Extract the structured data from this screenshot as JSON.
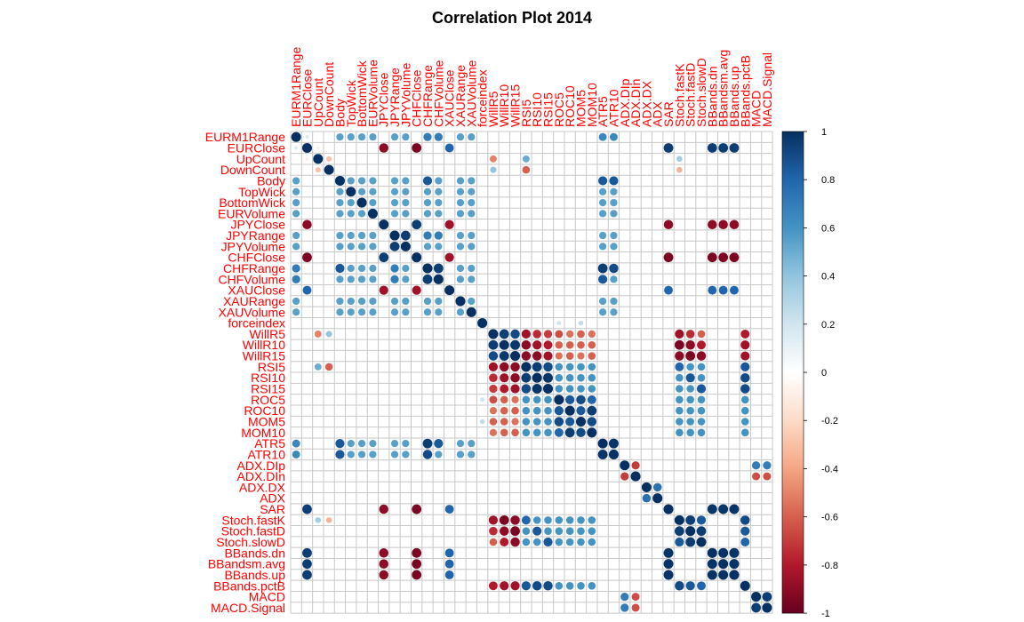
{
  "chart_data": {
    "type": "heatmap",
    "title": "Correlation Plot 2014",
    "method": "circle",
    "labels": [
      "EURM1Range",
      "EURClose",
      "UpCount",
      "DownCount",
      "Body",
      "TopWick",
      "BottomWick",
      "EURVolume",
      "JPYClose",
      "JPYRange",
      "JPYVolume",
      "CHFClose",
      "CHFRange",
      "CHFVolume",
      "XAUClose",
      "XAURange",
      "XAUVolume",
      "forceindex",
      "WillR5",
      "WillR10",
      "WillR15",
      "RSI5",
      "RSI10",
      "RSI15",
      "ROC5",
      "ROC10",
      "MOM5",
      "MOM10",
      "ATR5",
      "ATR10",
      "ADX.DIp",
      "ADX.DIn",
      "ADX.DX",
      "ADX",
      "SAR",
      "Stoch.fastK",
      "Stoch.fastD",
      "Stoch.slowD",
      "BBands.dn",
      "BBandsm.avg",
      "BBands.up",
      "BBands.pctB",
      "MACD",
      "MACD.Signal"
    ],
    "colorbar": {
      "range": [
        -1,
        1
      ],
      "ticks": [
        "1",
        "0.8",
        "0.6",
        "0.4",
        "0.2",
        "0",
        "-0.2",
        "-0.4",
        "-0.6",
        "-0.8",
        "-1"
      ],
      "colors": [
        "#67001f",
        "#b2182b",
        "#d6604d",
        "#f4a582",
        "#fddbc7",
        "#ffffff",
        "#d1e5f0",
        "#92c5de",
        "#4393c3",
        "#2166ac",
        "#053061"
      ]
    },
    "groups": {
      "a": [
        0,
        4,
        5,
        6,
        7,
        9,
        10,
        12,
        13,
        15,
        16,
        28,
        29
      ],
      "b": [
        1,
        8,
        11,
        14,
        34,
        38,
        39,
        40
      ],
      "c": [
        18,
        19,
        20,
        21,
        22,
        23,
        24,
        25,
        26,
        27,
        35,
        36,
        37,
        41
      ],
      "d": [
        30,
        31,
        42,
        43
      ]
    },
    "overrides": [
      {
        "i": 0,
        "j": 12,
        "v": 0.7
      },
      {
        "i": 0,
        "j": 13,
        "v": 0.7
      },
      {
        "i": 0,
        "j": 28,
        "v": 0.65
      },
      {
        "i": 0,
        "j": 29,
        "v": 0.65
      },
      {
        "i": 4,
        "j": 12,
        "v": 0.85
      },
      {
        "i": 4,
        "j": 28,
        "v": 0.85
      },
      {
        "i": 4,
        "j": 29,
        "v": 0.85
      },
      {
        "i": 12,
        "j": 13,
        "v": 0.95
      },
      {
        "i": 12,
        "j": 28,
        "v": 0.95
      },
      {
        "i": 12,
        "j": 29,
        "v": 0.9
      },
      {
        "i": 13,
        "j": 28,
        "v": 0.85
      },
      {
        "i": 28,
        "j": 29,
        "v": 0.98
      },
      {
        "i": 9,
        "j": 10,
        "v": 0.95
      },
      {
        "i": 9,
        "j": 12,
        "v": 0.7
      },
      {
        "i": 9,
        "j": 13,
        "v": 0.7
      },
      {
        "i": 8,
        "j": 11,
        "v": 0.95
      },
      {
        "i": 1,
        "j": 8,
        "v": -0.9
      },
      {
        "i": 1,
        "j": 11,
        "v": -0.95
      },
      {
        "i": 1,
        "j": 14,
        "v": 0.8
      },
      {
        "i": 8,
        "j": 14,
        "v": -0.85
      },
      {
        "i": 11,
        "j": 14,
        "v": -0.85
      },
      {
        "i": 1,
        "j": 34,
        "v": 0.95
      },
      {
        "i": 1,
        "j": 38,
        "v": 0.95
      },
      {
        "i": 1,
        "j": 39,
        "v": 0.95
      },
      {
        "i": 1,
        "j": 40,
        "v": 0.95
      },
      {
        "i": 8,
        "j": 34,
        "v": -0.9
      },
      {
        "i": 8,
        "j": 38,
        "v": -0.9
      },
      {
        "i": 8,
        "j": 39,
        "v": -0.9
      },
      {
        "i": 8,
        "j": 40,
        "v": -0.9
      },
      {
        "i": 11,
        "j": 34,
        "v": -0.95
      },
      {
        "i": 11,
        "j": 38,
        "v": -0.95
      },
      {
        "i": 11,
        "j": 39,
        "v": -0.95
      },
      {
        "i": 11,
        "j": 40,
        "v": -0.95
      },
      {
        "i": 14,
        "j": 34,
        "v": 0.8
      },
      {
        "i": 14,
        "j": 38,
        "v": 0.8
      },
      {
        "i": 14,
        "j": 39,
        "v": 0.8
      },
      {
        "i": 14,
        "j": 40,
        "v": 0.8
      },
      {
        "i": 34,
        "j": 38,
        "v": 0.98
      },
      {
        "i": 34,
        "j": 39,
        "v": 0.98
      },
      {
        "i": 34,
        "j": 40,
        "v": 0.98
      },
      {
        "i": 38,
        "j": 39,
        "v": 0.99
      },
      {
        "i": 38,
        "j": 40,
        "v": 0.99
      },
      {
        "i": 39,
        "j": 40,
        "v": 0.99
      },
      {
        "i": 18,
        "j": 19,
        "v": 0.95
      },
      {
        "i": 18,
        "j": 20,
        "v": 0.9
      },
      {
        "i": 19,
        "j": 20,
        "v": 0.97
      },
      {
        "i": 18,
        "j": 21,
        "v": -0.85
      },
      {
        "i": 18,
        "j": 22,
        "v": -0.75
      },
      {
        "i": 18,
        "j": 23,
        "v": -0.7
      },
      {
        "i": 19,
        "j": 21,
        "v": -0.9
      },
      {
        "i": 19,
        "j": 22,
        "v": -0.85
      },
      {
        "i": 19,
        "j": 23,
        "v": -0.8
      },
      {
        "i": 20,
        "j": 21,
        "v": -0.9
      },
      {
        "i": 20,
        "j": 22,
        "v": -0.9
      },
      {
        "i": 20,
        "j": 23,
        "v": -0.85
      },
      {
        "i": 18,
        "j": 24,
        "v": -0.65
      },
      {
        "i": 18,
        "j": 25,
        "v": -0.55
      },
      {
        "i": 18,
        "j": 26,
        "v": -0.6
      },
      {
        "i": 18,
        "j": 27,
        "v": -0.55
      },
      {
        "i": 19,
        "j": 24,
        "v": -0.6
      },
      {
        "i": 19,
        "j": 25,
        "v": -0.6
      },
      {
        "i": 19,
        "j": 26,
        "v": -0.6
      },
      {
        "i": 19,
        "j": 27,
        "v": -0.6
      },
      {
        "i": 20,
        "j": 24,
        "v": -0.55
      },
      {
        "i": 20,
        "j": 25,
        "v": -0.6
      },
      {
        "i": 20,
        "j": 26,
        "v": -0.55
      },
      {
        "i": 20,
        "j": 27,
        "v": -0.6
      },
      {
        "i": 21,
        "j": 22,
        "v": 0.95
      },
      {
        "i": 21,
        "j": 23,
        "v": 0.9
      },
      {
        "i": 22,
        "j": 23,
        "v": 0.98
      },
      {
        "i": 24,
        "j": 25,
        "v": 0.85
      },
      {
        "i": 24,
        "j": 26,
        "v": 0.9
      },
      {
        "i": 24,
        "j": 27,
        "v": 0.8
      },
      {
        "i": 25,
        "j": 26,
        "v": 0.85
      },
      {
        "i": 25,
        "j": 27,
        "v": 0.95
      },
      {
        "i": 26,
        "j": 27,
        "v": 0.9
      },
      {
        "i": 18,
        "j": 35,
        "v": -0.85
      },
      {
        "i": 18,
        "j": 36,
        "v": -0.75
      },
      {
        "i": 18,
        "j": 37,
        "v": -0.6
      },
      {
        "i": 19,
        "j": 35,
        "v": -0.95
      },
      {
        "i": 19,
        "j": 36,
        "v": -0.9
      },
      {
        "i": 19,
        "j": 37,
        "v": -0.8
      },
      {
        "i": 20,
        "j": 35,
        "v": -0.9
      },
      {
        "i": 20,
        "j": 36,
        "v": -0.95
      },
      {
        "i": 20,
        "j": 37,
        "v": -0.9
      },
      {
        "i": 35,
        "j": 36,
        "v": 0.95
      },
      {
        "i": 35,
        "j": 37,
        "v": 0.85
      },
      {
        "i": 36,
        "j": 37,
        "v": 0.95
      },
      {
        "i": 21,
        "j": 35,
        "v": 0.8
      },
      {
        "i": 22,
        "j": 36,
        "v": 0.85
      },
      {
        "i": 23,
        "j": 37,
        "v": 0.85
      },
      {
        "i": 18,
        "j": 41,
        "v": -0.8
      },
      {
        "i": 19,
        "j": 41,
        "v": -0.85
      },
      {
        "i": 20,
        "j": 41,
        "v": -0.85
      },
      {
        "i": 21,
        "j": 41,
        "v": 0.85
      },
      {
        "i": 22,
        "j": 41,
        "v": 0.9
      },
      {
        "i": 23,
        "j": 41,
        "v": 0.9
      },
      {
        "i": 35,
        "j": 41,
        "v": 0.9
      },
      {
        "i": 36,
        "j": 41,
        "v": 0.85
      },
      {
        "i": 37,
        "j": 41,
        "v": 0.8
      },
      {
        "i": 30,
        "j": 31,
        "v": -0.7
      },
      {
        "i": 32,
        "j": 33,
        "v": 0.75
      },
      {
        "i": 42,
        "j": 43,
        "v": 0.95
      },
      {
        "i": 30,
        "j": 42,
        "v": 0.7
      },
      {
        "i": 30,
        "j": 43,
        "v": 0.7
      },
      {
        "i": 31,
        "j": 42,
        "v": -0.65
      },
      {
        "i": 31,
        "j": 43,
        "v": -0.65
      },
      {
        "i": 2,
        "j": 3,
        "v": -0.3
      },
      {
        "i": 3,
        "j": 21,
        "v": -0.6
      },
      {
        "i": 2,
        "j": 18,
        "v": -0.5
      },
      {
        "i": 3,
        "j": 18,
        "v": 0.4
      },
      {
        "i": 2,
        "j": 21,
        "v": 0.5
      },
      {
        "i": 2,
        "j": 35,
        "v": 0.35
      },
      {
        "i": 3,
        "j": 35,
        "v": -0.35
      },
      {
        "i": 1,
        "j": 2,
        "v": -0.1
      },
      {
        "i": 0,
        "j": 1,
        "v": 0.15
      },
      {
        "i": 17,
        "j": 24,
        "v": 0.2
      },
      {
        "i": 17,
        "j": 26,
        "v": 0.25
      }
    ]
  }
}
